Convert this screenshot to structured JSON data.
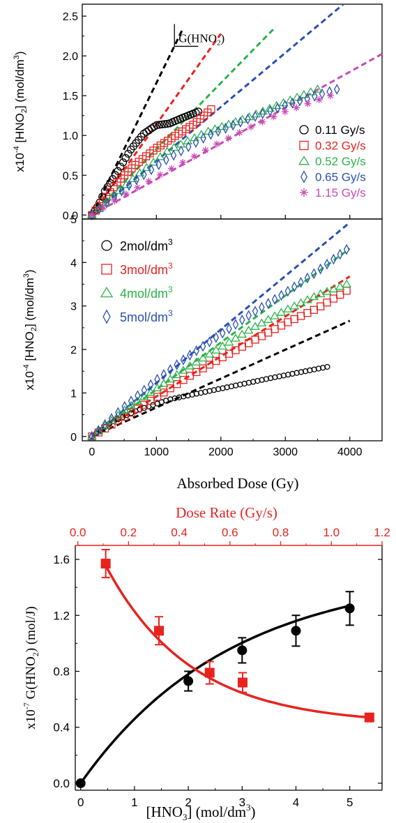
{
  "chart_data": [
    {
      "type": "scatter",
      "ylabel": "x10-4 [HNO2] (mol/dm3)",
      "ylabel_parts": {
        "prefix": "x10",
        "exp": "-4",
        "mid": " [HNO",
        "sub": "2",
        "post": "] (mol/dm",
        "sup": "3",
        "close": ")"
      },
      "ylim": [
        -0.05,
        2.65
      ],
      "xlim": [
        -150,
        4500
      ],
      "yticks": [
        "0.0",
        "0.5",
        "1.0",
        "1.5",
        "2.0",
        "2.5"
      ],
      "annotation": {
        "text": "G(HNO",
        "sub": "2",
        "close": ")"
      },
      "legend_position": "right",
      "series": [
        {
          "name": "0.11 Gy/s",
          "marker": "circle",
          "color": "#000000",
          "x_range": [
            0,
            1650
          ],
          "curve": [
            [
              0,
              0
            ],
            [
              100,
              0.12
            ],
            [
              200,
              0.3
            ],
            [
              400,
              0.55
            ],
            [
              600,
              0.82
            ],
            [
              800,
              1.02
            ],
            [
              1000,
              1.13
            ],
            [
              1200,
              1.15
            ],
            [
              1400,
              1.22
            ],
            [
              1650,
              1.3
            ]
          ],
          "fit_slope": 0.00166,
          "fit_x_end": 1400
        },
        {
          "name": "0.32 Gy/s",
          "marker": "square",
          "color": "#e8231f",
          "x_range": [
            0,
            1850
          ],
          "curve": [
            [
              0,
              0
            ],
            [
              200,
              0.2
            ],
            [
              400,
              0.42
            ],
            [
              700,
              0.65
            ],
            [
              1000,
              0.84
            ],
            [
              1300,
              1.0
            ],
            [
              1600,
              1.15
            ],
            [
              1850,
              1.33
            ]
          ],
          "fit_slope": 0.00114,
          "fit_x_end": 2000
        },
        {
          "name": "0.52 Gy/s",
          "marker": "triangle",
          "color": "#2bb34a",
          "x_range": [
            0,
            3500
          ],
          "curve": [
            [
              0,
              0
            ],
            [
              300,
              0.22
            ],
            [
              700,
              0.5
            ],
            [
              1200,
              0.82
            ],
            [
              1800,
              1.05
            ],
            [
              2400,
              1.22
            ],
            [
              3000,
              1.42
            ],
            [
              3500,
              1.58
            ]
          ],
          "fit_slope": 0.00083,
          "fit_x_end": 2850
        },
        {
          "name": "0.65 Gy/s",
          "marker": "diamond",
          "color": "#2b4fb3",
          "x_range": [
            0,
            3800
          ],
          "curve": [
            [
              0,
              0
            ],
            [
              300,
              0.2
            ],
            [
              700,
              0.45
            ],
            [
              1200,
              0.72
            ],
            [
              1800,
              1.0
            ],
            [
              2400,
              1.2
            ],
            [
              3000,
              1.38
            ],
            [
              3800,
              1.58
            ]
          ],
          "fit_slope": 0.00069,
          "fit_x_end": 3900
        },
        {
          "name": "1.15 Gy/s",
          "marker": "asterisk",
          "color": "#c84bb5",
          "x_range": [
            0,
            3700
          ],
          "curve": [
            [
              0,
              0
            ],
            [
              500,
              0.25
            ],
            [
              1000,
              0.48
            ],
            [
              1500,
              0.7
            ],
            [
              2000,
              0.92
            ],
            [
              2500,
              1.12
            ],
            [
              3000,
              1.3
            ],
            [
              3700,
              1.5
            ]
          ],
          "fit_slope": 0.00045,
          "fit_x_end": 4500
        }
      ]
    },
    {
      "type": "scatter",
      "ylabel": "x10-4 [HNO2] (mol/dm3)",
      "ylabel_parts": {
        "prefix": "x10",
        "exp": "-4",
        "mid": " [HNO",
        "sub": "2",
        "post": "] (mol/dm",
        "sup": "3",
        "close": ")"
      },
      "xlabel": "Absorbed Dose (Gy)",
      "ylim": [
        -0.1,
        5.0
      ],
      "xlim": [
        -150,
        4500
      ],
      "xticks": [
        "0",
        "1000",
        "2000",
        "3000",
        "4000"
      ],
      "yticks": [
        "0",
        "1",
        "2",
        "3",
        "4",
        "5"
      ],
      "legend_position": "top-left",
      "series": [
        {
          "name": "2mol/dm3",
          "label": "2mol/dm",
          "sup": "3",
          "marker": "circle",
          "color": "#000000",
          "x_range": [
            0,
            3650
          ],
          "curve": [
            [
              0,
              0
            ],
            [
              300,
              0.32
            ],
            [
              700,
              0.6
            ],
            [
              1200,
              0.85
            ],
            [
              2000,
              1.1
            ],
            [
              2800,
              1.35
            ],
            [
              3650,
              1.6
            ]
          ],
          "fit_slope": 0.000665,
          "fit_x_end": 4000
        },
        {
          "name": "3mol/dm3",
          "label": "3mol/dm",
          "sup": "3",
          "marker": "square",
          "color": "#e8231f",
          "x_range": [
            0,
            3950
          ],
          "curve": [
            [
              0,
              0
            ],
            [
              500,
              0.45
            ],
            [
              1000,
              0.9
            ],
            [
              1500,
              1.38
            ],
            [
              2000,
              1.8
            ],
            [
              2500,
              2.2
            ],
            [
              3000,
              2.6
            ],
            [
              3500,
              2.95
            ],
            [
              3950,
              3.35
            ]
          ],
          "fit_slope": 0.00092,
          "fit_x_end": 4000
        },
        {
          "name": "4mol/dm3",
          "label": "4mol/dm",
          "sup": "3",
          "marker": "triangle",
          "color": "#2bb34a",
          "x_range": [
            0,
            3950
          ],
          "curve": [
            [
              0,
              0
            ],
            [
              500,
              0.6
            ],
            [
              1000,
              1.1
            ],
            [
              1500,
              1.6
            ],
            [
              2000,
              2.05
            ],
            [
              2500,
              2.5
            ],
            [
              3000,
              2.9
            ],
            [
              3500,
              3.25
            ],
            [
              3950,
              3.5
            ]
          ],
          "fit_slope": 0.00108,
          "fit_x_end": 4000
        },
        {
          "name": "5mol/dm3",
          "label": "5mol/dm",
          "sup": "3",
          "marker": "diamond",
          "color": "#2b4fb3",
          "x_range": [
            0,
            3950
          ],
          "curve": [
            [
              0,
              0
            ],
            [
              500,
              0.68
            ],
            [
              1000,
              1.3
            ],
            [
              1500,
              1.85
            ],
            [
              2000,
              2.35
            ],
            [
              2500,
              2.85
            ],
            [
              3000,
              3.3
            ],
            [
              3500,
              3.8
            ],
            [
              3950,
              4.3
            ]
          ],
          "fit_slope": 0.00123,
          "fit_x_end": 4000
        }
      ]
    },
    {
      "type": "scatter",
      "xlabel": "[HNO3] (mol/dm3)",
      "xlabel_parts": {
        "pre": "[HNO",
        "sub": "3",
        "mid": "] (mol/dm",
        "sup": "3",
        "close": ")"
      },
      "top_xlabel": "Dose Rate (Gy/s)",
      "ylabel": "x10-7 G(HNO2) (mol/J)",
      "ylabel_parts": {
        "prefix": "x10",
        "exp": "-7",
        "mid": " G(HNO",
        "sub": "2",
        "post": ") (mol/J)"
      },
      "xlim": [
        -0.1,
        5.6
      ],
      "top_xlim": [
        -0.01,
        1.2
      ],
      "ylim": [
        -0.05,
        1.7
      ],
      "xticks": [
        "0",
        "1",
        "2",
        "3",
        "4",
        "5"
      ],
      "top_xticks": [
        "0.0",
        "0.2",
        "0.4",
        "0.6",
        "0.8",
        "1.0",
        "1.2"
      ],
      "yticks": [
        "0.0",
        "0.4",
        "0.8",
        "1.2",
        "1.6"
      ],
      "series": [
        {
          "axis": "bottom",
          "marker": "filled-circle",
          "color": "#000000",
          "x": [
            0,
            2,
            3,
            4,
            5
          ],
          "y": [
            0.0,
            0.73,
            0.95,
            1.09,
            1.25
          ],
          "err": [
            0,
            0.07,
            0.09,
            0.11,
            0.12
          ],
          "fit": "saturating"
        },
        {
          "axis": "top",
          "marker": "filled-square",
          "color": "#e8231f",
          "x": [
            0.11,
            0.32,
            0.52,
            0.65,
            1.15
          ],
          "y": [
            1.57,
            1.09,
            0.79,
            0.72,
            0.47
          ],
          "err": [
            0.1,
            0.1,
            0.08,
            0.07,
            0.0
          ],
          "fit": "exponential-decay"
        }
      ]
    }
  ]
}
